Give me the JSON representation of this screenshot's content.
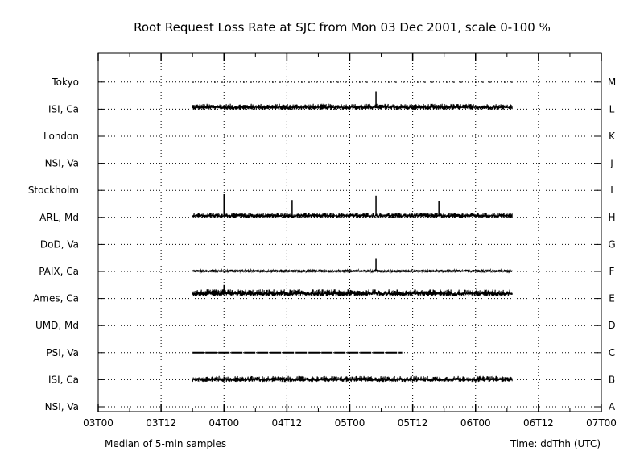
{
  "chart_data": {
    "type": "line",
    "title": "Root Request Loss Rate at SJC from Mon 03 Dec 2001, scale 0-100 %",
    "footer_left": "Median of 5-min samples",
    "footer_right": "Time: ddThh (UTC)",
    "xlabel": "Time: ddThh (UTC)",
    "x_ticks": [
      "03T00",
      "03T12",
      "04T00",
      "04T12",
      "05T00",
      "05T12",
      "06T00",
      "06T12",
      "07T00"
    ],
    "x_range_hours": [
      0,
      96
    ],
    "left_labels": [
      "NSI, Va",
      "ISI, Ca",
      "PSI, Va",
      "UMD, Md",
      "Ames, Ca",
      "PAIX, Ca",
      "DoD, Va",
      "ARL, Md",
      "Stockholm",
      "NSI, Va",
      "London",
      "ISI, Ca",
      "Tokyo"
    ],
    "right_labels": [
      "A",
      "B",
      "C",
      "D",
      "E",
      "F",
      "G",
      "H",
      "I",
      "J",
      "K",
      "L",
      "M"
    ],
    "grid": true,
    "series": [
      {
        "name": "M",
        "row": 12,
        "segments": [
          [
            18,
            79
          ]
        ],
        "mean_loss": 0,
        "noise": 0,
        "style": "dots"
      },
      {
        "name": "L",
        "row": 11,
        "segments": [
          [
            18,
            79
          ]
        ],
        "mean_loss": 7,
        "noise": 4,
        "spikes": [
          [
            53,
            22
          ]
        ]
      },
      {
        "name": "H",
        "row": 7,
        "segments": [
          [
            18,
            79
          ]
        ],
        "mean_loss": 6,
        "noise": 3,
        "spikes": [
          [
            24,
            30
          ],
          [
            37,
            22
          ],
          [
            53,
            28
          ],
          [
            65,
            20
          ]
        ]
      },
      {
        "name": "F",
        "row": 5,
        "segments": [
          [
            18,
            79
          ]
        ],
        "mean_loss": 1,
        "noise": 1,
        "spikes": [
          [
            53,
            18
          ]
        ]
      },
      {
        "name": "E",
        "row": 4,
        "segments": [
          [
            18,
            79
          ]
        ],
        "mean_loss": 20,
        "noise": 5,
        "spikes": [
          [
            24,
            12
          ]
        ]
      },
      {
        "name": "C",
        "row": 2,
        "segments": [
          [
            18,
            58
          ]
        ],
        "mean_loss": 0,
        "noise": 0,
        "style": "dashed"
      },
      {
        "name": "B",
        "row": 1,
        "segments": [
          [
            18,
            79
          ]
        ],
        "mean_loss": 0,
        "noise": 4
      }
    ]
  }
}
